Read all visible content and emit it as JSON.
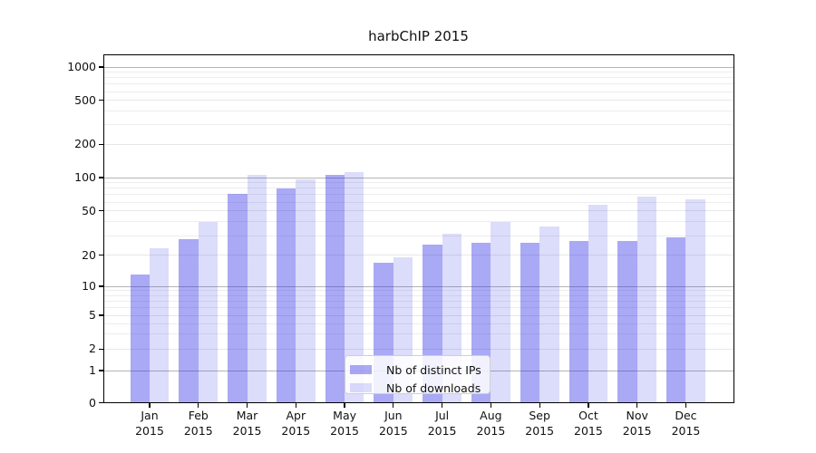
{
  "title": "harbChIP 2015",
  "legend": {
    "items": [
      {
        "label": "Nb of distinct IPs",
        "color": "rgba(40,40,230,0.40)"
      },
      {
        "label": "Nb of downloads",
        "color": "rgba(40,40,230,0.165)"
      }
    ]
  },
  "colors": {
    "bar_distinct_ips": "#a9a9f5",
    "bar_downloads": "#dcdcfb",
    "major_gridline": "#b4b4b4",
    "minor_gridline": "#ededed"
  },
  "chart_data": {
    "type": "bar",
    "title": "harbChIP 2015",
    "categories": [
      "Jan 2015",
      "Feb 2015",
      "Mar 2015",
      "Apr 2015",
      "May 2015",
      "Jun 2015",
      "Jul 2015",
      "Aug 2015",
      "Sep 2015",
      "Oct 2015",
      "Nov 2015",
      "Dec 2015"
    ],
    "series": [
      {
        "name": "Nb of distinct IPs",
        "color": "rgba(40,40,230,0.40)",
        "values": [
          13,
          28,
          71,
          80,
          106,
          17,
          25,
          26,
          26,
          27,
          27,
          29
        ]
      },
      {
        "name": "Nb of downloads",
        "color": "rgba(40,40,230,0.165)",
        "values": [
          23,
          40,
          106,
          96,
          112,
          19,
          31,
          40,
          36,
          57,
          67,
          63
        ]
      }
    ],
    "xlabel": "",
    "ylabel": "",
    "yscale": "symlog-like (compressed below 10, zero baseline)",
    "yticks": [
      0,
      1,
      2,
      5,
      10,
      20,
      50,
      100,
      200,
      500,
      1000
    ],
    "ylim": [
      0,
      1300
    ],
    "grid": true,
    "legend_position": "lower center"
  }
}
